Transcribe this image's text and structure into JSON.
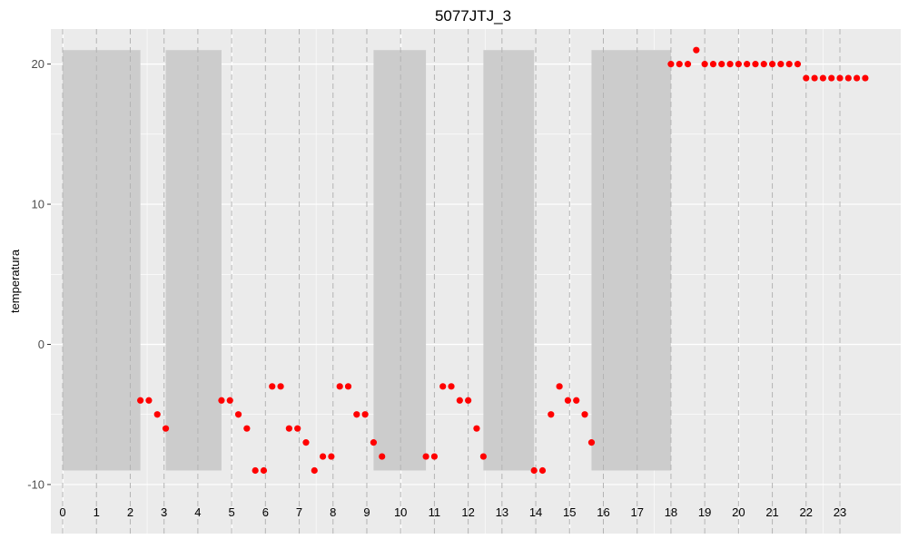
{
  "chart_data": {
    "type": "scatter",
    "title": "5077JTJ_3",
    "xlabel": "",
    "ylabel": "temperatura",
    "xlim": [
      -0.35,
      24.8
    ],
    "ylim": [
      -13.5,
      22.5
    ],
    "x_ticks": [
      0,
      1,
      2,
      3,
      4,
      5,
      6,
      7,
      8,
      9,
      10,
      11,
      12,
      13,
      14,
      15,
      16,
      17,
      18,
      19,
      20,
      21,
      22,
      23
    ],
    "x_tick_labels": [
      "0",
      "1",
      "2",
      "3",
      "4",
      "5",
      "6",
      "7",
      "8",
      "9",
      "10",
      "11",
      "12",
      "13",
      "14",
      "15",
      "16",
      "17",
      "18",
      "19",
      "20",
      "21",
      "22",
      "23"
    ],
    "y_ticks": [
      -10,
      0,
      10,
      20
    ],
    "y_tick_labels": [
      "-10",
      "0",
      "10",
      "20"
    ],
    "grid": true,
    "background_color": "#ebebeb",
    "point_color": "#ff0000",
    "shaded_region_color": "#cccccc",
    "shaded_regions": [
      {
        "x_start": 0.0,
        "x_end": 2.3,
        "y_start": -9,
        "y_end": 21
      },
      {
        "x_start": 3.05,
        "x_end": 4.7,
        "y_start": -9,
        "y_end": 21
      },
      {
        "x_start": 9.2,
        "x_end": 10.75,
        "y_start": -9,
        "y_end": 21
      },
      {
        "x_start": 12.45,
        "x_end": 13.95,
        "y_start": -9,
        "y_end": 21
      },
      {
        "x_start": 15.65,
        "x_end": 18.0,
        "y_start": -9,
        "y_end": 21
      }
    ],
    "series": [
      {
        "x": [
          2.3,
          2.55,
          2.8,
          3.05,
          4.7,
          4.95,
          5.2,
          5.45,
          5.7,
          5.95,
          6.2,
          6.45,
          6.7,
          6.95,
          7.2,
          7.45,
          7.7,
          7.95,
          8.2,
          8.45,
          8.7,
          8.95,
          9.2,
          9.45,
          10.75,
          11.0,
          11.25,
          11.5,
          11.75,
          12.0,
          12.25,
          12.45,
          13.95,
          14.2,
          14.45,
          14.7,
          14.95,
          15.2,
          15.45,
          15.65,
          18.0,
          18.25,
          18.5,
          18.75,
          19.0,
          19.25,
          19.5,
          19.75,
          20.0,
          20.25,
          20.5,
          20.75,
          21.0,
          21.25,
          21.5,
          21.75,
          22.0,
          22.25,
          22.5,
          22.75,
          23.0,
          23.25,
          23.5,
          23.75
        ],
        "y": [
          -4,
          -4,
          -5,
          -6,
          -4,
          -4,
          -5,
          -6,
          -9,
          -9,
          -3,
          -3,
          -6,
          -6,
          -7,
          -9,
          -8,
          -8,
          -3,
          -3,
          -5,
          -5,
          -7,
          -8,
          -8,
          -8,
          -3,
          -3,
          -4,
          -4,
          -6,
          -8,
          -9,
          -9,
          -5,
          -3,
          -4,
          -4,
          -5,
          -7,
          20,
          20,
          20,
          21,
          20,
          20,
          20,
          20,
          20,
          20,
          20,
          20,
          20,
          20,
          20,
          20,
          19,
          19,
          19,
          19,
          19,
          19,
          19,
          19
        ]
      }
    ]
  }
}
